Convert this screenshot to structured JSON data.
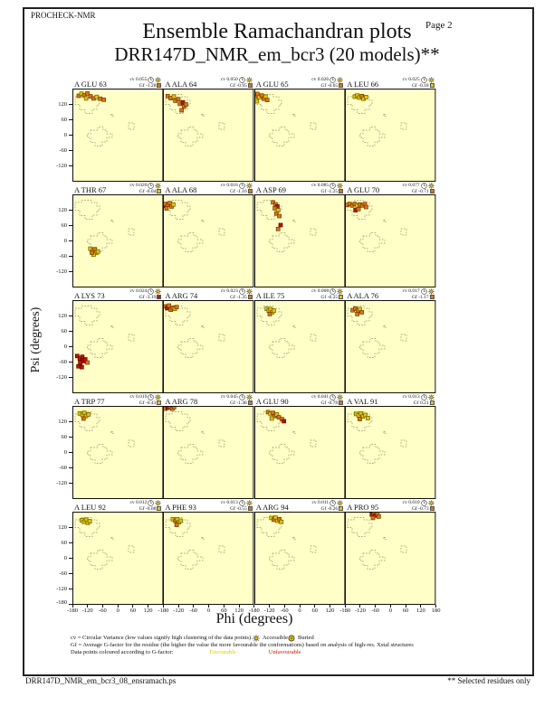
{
  "page": {
    "app_label": "PROCHECK-NMR",
    "page_label": "Page  2",
    "title": "Ensemble Ramachandran plots",
    "subtitle": "DRR147D_NMR_em_bcr3 (20 models)**",
    "footer_left": "DRR147D_NMR_em_bcr3_08_ensramach.ps",
    "footer_right": "** Selected residues only"
  },
  "axes": {
    "xlabel": "Phi (degrees)",
    "ylabel": "Psi (degrees)"
  },
  "legend": {
    "line1": "cv = Circular Variance (low values signify high clustering of the data points).",
    "accessible_label": "Accessible",
    "buried_label": "Buried",
    "line2": "Gf = Average G-factor for the residue (the higher the value the more favourable the conformations) based on analysis of high-res. Xstal structures",
    "line3_prefix": "Data points coloured according to G-factor:",
    "favourable_label": "Favourable",
    "unfavourable_label": "Unfavourable"
  },
  "colors": {
    "plot_bg": "#ffffc8",
    "favourable": "#e3c800",
    "mid": "#dd7712",
    "unfavourable": "#c41200",
    "region_dash": "#8e8e5a"
  },
  "chart_data": {
    "type": "scatter",
    "description": "20 per-residue ensemble Ramachandran subplots (phi vs psi, degrees), 4 columns x 5 rows",
    "x_range": [
      -180,
      180
    ],
    "y_range": [
      -180,
      180
    ],
    "x_ticks": [
      -180,
      -120,
      -60,
      0,
      60,
      120,
      180
    ],
    "y_ticks": [
      120,
      60,
      0,
      -60,
      -120
    ],
    "y_bottom_tick": -180,
    "point_color_key": {
      "y": "favourable-yellow",
      "o": "mid-orange",
      "r": "unfavourable-red"
    },
    "subplots": [
      {
        "label": "A GLU 63",
        "cv": "0.055",
        "gf": "-1.28",
        "gf_color": "orange",
        "points": [
          [
            -155,
            152,
            "o"
          ],
          [
            -144,
            160,
            "y"
          ],
          [
            -133,
            154,
            "o"
          ],
          [
            -121,
            161,
            "o"
          ],
          [
            -126,
            142,
            "y"
          ],
          [
            -108,
            150,
            "o"
          ],
          [
            -96,
            142,
            "o"
          ],
          [
            -84,
            148,
            "y"
          ],
          [
            -70,
            141,
            "o"
          ],
          [
            -56,
            137,
            "o"
          ]
        ]
      },
      {
        "label": "A ALA 64",
        "cv": "0.050",
        "gf": "-0.95",
        "gf_color": "orange",
        "points": [
          [
            -161,
            151,
            "o"
          ],
          [
            -149,
            143,
            "o"
          ],
          [
            -137,
            149,
            "y"
          ],
          [
            -131,
            133,
            "o"
          ],
          [
            -119,
            139,
            "o"
          ],
          [
            -113,
            121,
            "o"
          ],
          [
            -101,
            127,
            "r"
          ],
          [
            -96,
            111,
            "o"
          ],
          [
            -89,
            119,
            "o"
          ],
          [
            -106,
            96,
            "o"
          ]
        ]
      },
      {
        "label": "A GLU 65",
        "cv": "0.026",
        "gf": "-0.65",
        "gf_color": "orange",
        "points": [
          [
            -176,
            151,
            "o"
          ],
          [
            -168,
            159,
            "o"
          ],
          [
            -161,
            146,
            "y"
          ],
          [
            -151,
            153,
            "o"
          ],
          [
            -143,
            141,
            "o"
          ],
          [
            -136,
            149,
            "y"
          ],
          [
            -129,
            136,
            "o"
          ],
          [
            -170,
            131,
            "y"
          ]
        ]
      },
      {
        "label": "A LEU 66",
        "cv": "0.025",
        "gf": "-0.18",
        "gf_color": "yellow",
        "points": [
          [
            -141,
            149,
            "y"
          ],
          [
            -131,
            153,
            "y"
          ],
          [
            -123,
            145,
            "y"
          ],
          [
            -113,
            151,
            "o"
          ],
          [
            -106,
            141,
            "y"
          ],
          [
            -96,
            147,
            "y"
          ]
        ]
      },
      {
        "label": "A THR 67",
        "cv": "0.020",
        "gf": "-0.04",
        "gf_color": "yellow",
        "points": [
          [
            -109,
            -30,
            "y"
          ],
          [
            -99,
            -38,
            "y"
          ],
          [
            -91,
            -32,
            "o"
          ],
          [
            -86,
            -46,
            "y"
          ],
          [
            -96,
            -53,
            "y"
          ],
          [
            -79,
            -41,
            "y"
          ],
          [
            -103,
            -45,
            "o"
          ]
        ]
      },
      {
        "label": "A ALA 68",
        "cv": "0.016",
        "gf": "-1.16",
        "gf_color": "orange",
        "points": [
          [
            -178,
            136,
            "r"
          ],
          [
            -171,
            143,
            "o"
          ],
          [
            -161,
            139,
            "o"
          ],
          [
            -153,
            146,
            "o"
          ],
          [
            -146,
            133,
            "o"
          ],
          [
            -139,
            141,
            "y"
          ],
          [
            -166,
            126,
            "o"
          ]
        ]
      },
      {
        "label": "A ASP 69",
        "cv": "0.085",
        "gf": "-1.25",
        "gf_color": "orange",
        "points": [
          [
            -106,
            149,
            "o"
          ],
          [
            -96,
            141,
            "o"
          ],
          [
            -89,
            133,
            "r"
          ],
          [
            -99,
            126,
            "o"
          ],
          [
            -86,
            119,
            "y"
          ],
          [
            -93,
            106,
            "o"
          ],
          [
            -81,
            96,
            "o"
          ],
          [
            -76,
            61,
            "r"
          ],
          [
            -86,
            46,
            "o"
          ]
        ]
      },
      {
        "label": "A GLU 70",
        "cv": "0.077",
        "gf": "-0.71",
        "gf_color": "orange",
        "points": [
          [
            -171,
            139,
            "o"
          ],
          [
            -161,
            143,
            "o"
          ],
          [
            -151,
            137,
            "o"
          ],
          [
            -141,
            143,
            "o"
          ],
          [
            -131,
            137,
            "y"
          ],
          [
            -121,
            141,
            "o"
          ],
          [
            -111,
            137,
            "o"
          ],
          [
            -101,
            143,
            "o"
          ],
          [
            -96,
            131,
            "o"
          ],
          [
            -138,
            119,
            "r"
          ],
          [
            -126,
            123,
            "o"
          ]
        ]
      },
      {
        "label": "A LYS 73",
        "cv": "0.024",
        "gf": "-3.19",
        "gf_color": "red",
        "points": [
          [
            -161,
            -36,
            "r"
          ],
          [
            -151,
            -46,
            "r"
          ],
          [
            -141,
            -39,
            "r"
          ],
          [
            -136,
            -56,
            "r"
          ],
          [
            -149,
            -63,
            "r"
          ],
          [
            -129,
            -49,
            "r"
          ],
          [
            -121,
            -61,
            "o"
          ],
          [
            -156,
            -76,
            "r"
          ],
          [
            -143,
            -79,
            "r"
          ]
        ]
      },
      {
        "label": "A ARG 74",
        "cv": "0.023",
        "gf": "-1.35",
        "gf_color": "orange",
        "points": [
          [
            -173,
            156,
            "o"
          ],
          [
            -163,
            149,
            "r"
          ],
          [
            -156,
            159,
            "o"
          ],
          [
            -149,
            143,
            "o"
          ],
          [
            -141,
            151,
            "o"
          ],
          [
            -133,
            146,
            "y"
          ],
          [
            -126,
            153,
            "o"
          ]
        ]
      },
      {
        "label": "A ILE 75",
        "cv": "0.008",
        "gf": "-0.25",
        "gf_color": "yellow",
        "points": [
          [
            -131,
            146,
            "y"
          ],
          [
            -123,
            139,
            "y"
          ],
          [
            -116,
            145,
            "y"
          ],
          [
            -109,
            133,
            "y"
          ],
          [
            -119,
            126,
            "o"
          ],
          [
            -103,
            139,
            "y"
          ]
        ]
      },
      {
        "label": "A ALA 76",
        "cv": "0.017",
        "gf": "-1.17",
        "gf_color": "orange",
        "points": [
          [
            -149,
            141,
            "o"
          ],
          [
            -139,
            147,
            "o"
          ],
          [
            -129,
            139,
            "o"
          ],
          [
            -121,
            145,
            "y"
          ],
          [
            -113,
            133,
            "o"
          ],
          [
            -131,
            126,
            "o"
          ]
        ]
      },
      {
        "label": "A TRP 77",
        "cv": "0.019",
        "gf": "-0.43",
        "gf_color": "yellow",
        "points": [
          [
            -151,
            151,
            "y"
          ],
          [
            -141,
            145,
            "y"
          ],
          [
            -133,
            153,
            "y"
          ],
          [
            -126,
            141,
            "y"
          ],
          [
            -116,
            147,
            "y"
          ],
          [
            -136,
            131,
            "o"
          ]
        ]
      },
      {
        "label": "A ARG 78",
        "cv": "0.045",
        "gf": "-1.48",
        "gf_color": "orange",
        "points": [
          [
            -178,
            176,
            "r"
          ],
          [
            -171,
            169,
            "o"
          ],
          [
            -161,
            173,
            "r"
          ],
          [
            -151,
            177,
            "o"
          ],
          [
            -143,
            169,
            "o"
          ],
          [
            -136,
            175,
            "o"
          ]
        ]
      },
      {
        "label": "A GLU 90",
        "cv": "0.041",
        "gf": "-0.78",
        "gf_color": "orange",
        "points": [
          [
            -126,
            156,
            "o"
          ],
          [
            -116,
            149,
            "y"
          ],
          [
            -106,
            153,
            "o"
          ],
          [
            -99,
            141,
            "o"
          ],
          [
            -91,
            147,
            "y"
          ],
          [
            -83,
            136,
            "o"
          ],
          [
            -71,
            129,
            "o"
          ],
          [
            -63,
            121,
            "r"
          ],
          [
            -111,
            131,
            "y"
          ]
        ]
      },
      {
        "label": "A VAL 91",
        "cv": "0.013",
        "gf": "0.21",
        "gf_color": "yellow",
        "points": [
          [
            -136,
            149,
            "y"
          ],
          [
            -126,
            143,
            "y"
          ],
          [
            -117,
            151,
            "y"
          ],
          [
            -109,
            139,
            "y"
          ],
          [
            -99,
            145,
            "y"
          ],
          [
            -89,
            133,
            "y"
          ],
          [
            -121,
            129,
            "o"
          ]
        ]
      },
      {
        "label": "A LEU 92",
        "cv": "0.012",
        "gf": "-0.08",
        "gf_color": "yellow",
        "points": [
          [
            -143,
            147,
            "y"
          ],
          [
            -134,
            141,
            "y"
          ],
          [
            -126,
            149,
            "y"
          ],
          [
            -119,
            137,
            "y"
          ],
          [
            -111,
            143,
            "y"
          ]
        ]
      },
      {
        "label": "A PHE 93",
        "cv": "0.013",
        "gf": "-0.55",
        "gf_color": "orange",
        "points": [
          [
            -141,
            151,
            "y"
          ],
          [
            -131,
            145,
            "o"
          ],
          [
            -123,
            151,
            "y"
          ],
          [
            -116,
            139,
            "y"
          ],
          [
            -109,
            145,
            "y"
          ],
          [
            -126,
            129,
            "o"
          ]
        ]
      },
      {
        "label": "A ARG 94",
        "cv": "0.011",
        "gf": "-0.26",
        "gf_color": "yellow",
        "points": [
          [
            -113,
            156,
            "y"
          ],
          [
            -103,
            149,
            "o"
          ],
          [
            -96,
            157,
            "y"
          ],
          [
            -89,
            145,
            "y"
          ],
          [
            -81,
            151,
            "o"
          ],
          [
            -73,
            141,
            "y"
          ]
        ]
      },
      {
        "label": "A PRO 95",
        "cv": "0.010",
        "gf": "-0.73",
        "gf_color": "orange",
        "points": [
          [
            -73,
            169,
            "r"
          ],
          [
            -65,
            173,
            "o"
          ],
          [
            -59,
            165,
            "r"
          ],
          [
            -51,
            171,
            "o"
          ],
          [
            -46,
            161,
            "o"
          ],
          [
            -69,
            156,
            "o"
          ]
        ]
      }
    ]
  }
}
